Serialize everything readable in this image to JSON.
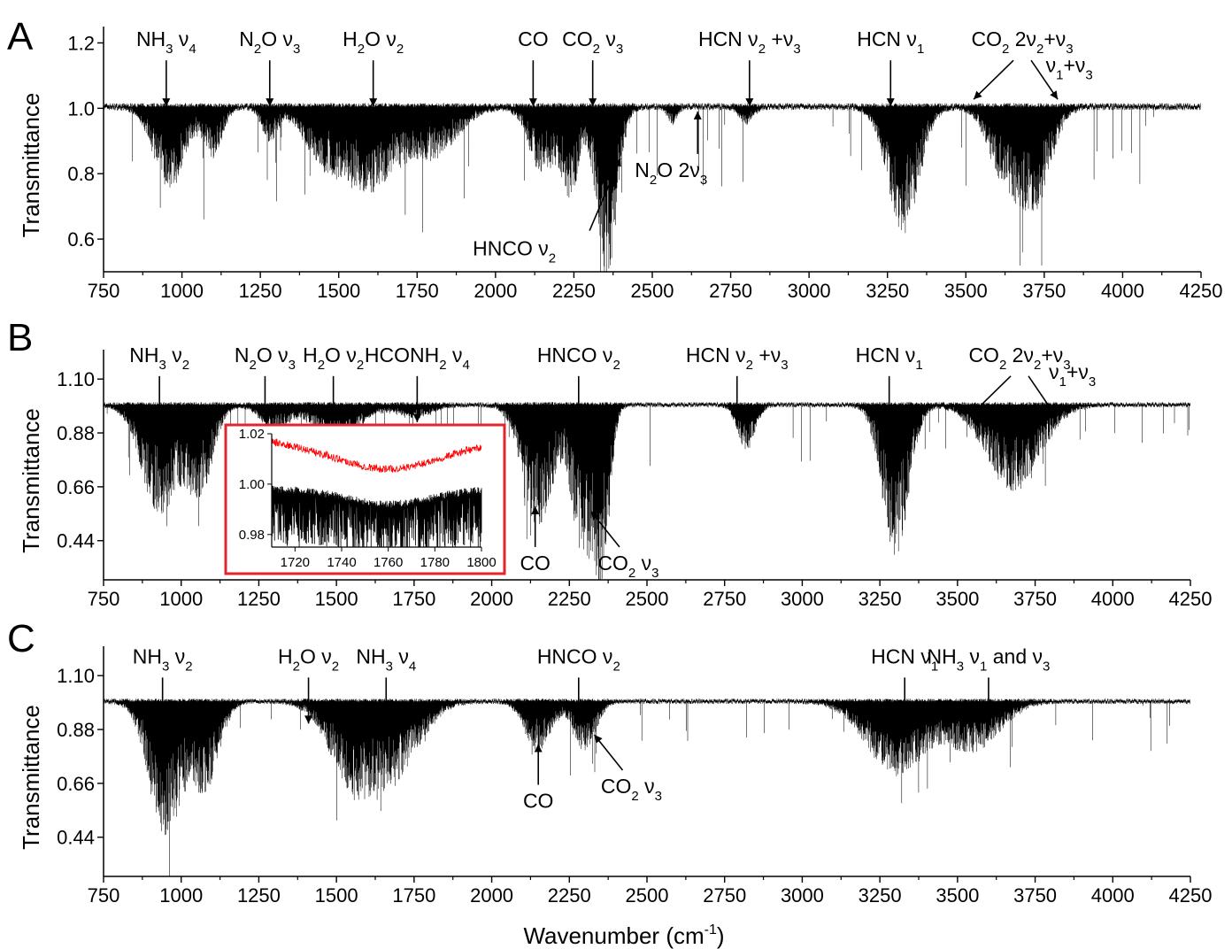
{
  "figure": {
    "xlabel": "Wavenumber (cm",
    "xlabel_sup": "-1",
    "xlabel_close": ")"
  },
  "chart_data": [
    {
      "type": "line",
      "panel": "A",
      "ylabel": "Transmittance",
      "xlim": [
        750,
        4250
      ],
      "ylim": [
        0.5,
        1.25
      ],
      "x_ticks": [
        750,
        1000,
        1250,
        1500,
        1750,
        2000,
        2250,
        2500,
        2750,
        3000,
        3250,
        3500,
        3750,
        4000,
        4250
      ],
      "x_tick_labels": [
        "750",
        "1000",
        "1250",
        "1500",
        "1750",
        "2000",
        "2250",
        "2500",
        "2750",
        "3000",
        "3250",
        "3500",
        "3750",
        "4000",
        "4250"
      ],
      "y_ticks": [
        0.6,
        0.8,
        1.0,
        1.2
      ],
      "y_tick_labels": [
        "0.6",
        "0.8",
        "1.0",
        "1.2"
      ],
      "baseline": 1.0,
      "bands": [
        {
          "center": 960,
          "width": 70,
          "depth": 0.25
        },
        {
          "center": 1100,
          "width": 40,
          "depth": 0.15
        },
        {
          "center": 1280,
          "width": 35,
          "depth": 0.1
        },
        {
          "center": 1450,
          "width": 90,
          "depth": 0.15
        },
        {
          "center": 1600,
          "width": 110,
          "depth": 0.25
        },
        {
          "center": 1800,
          "width": 110,
          "depth": 0.15
        },
        {
          "center": 2150,
          "width": 60,
          "depth": 0.2
        },
        {
          "center": 2240,
          "width": 40,
          "depth": 0.25
        },
        {
          "center": 2355,
          "width": 45,
          "depth": 0.55
        },
        {
          "center": 2565,
          "width": 20,
          "depth": 0.05
        },
        {
          "center": 2800,
          "width": 30,
          "depth": 0.05
        },
        {
          "center": 3300,
          "width": 70,
          "depth": 0.38
        },
        {
          "center": 3620,
          "width": 70,
          "depth": 0.2
        },
        {
          "center": 3720,
          "width": 70,
          "depth": 0.3
        }
      ],
      "annotations": [
        {
          "text": "NH",
          "sub": "3",
          "rest": " ν",
          "sub2": "4",
          "x": 950,
          "y": 1.19
        },
        {
          "text": "N",
          "sub": "2",
          "rest": "O ν",
          "sub2": "3",
          "x": 1280,
          "y": 1.19
        },
        {
          "text": "H",
          "sub": "2",
          "rest": "O ν",
          "sub2": "2",
          "x": 1610,
          "y": 1.19
        },
        {
          "text": "CO",
          "sub": "",
          "rest": "",
          "sub2": "",
          "x": 2120,
          "y": 1.19
        },
        {
          "text": "CO",
          "sub": "2",
          "rest": " ν",
          "sub2": "3",
          "x": 2310,
          "y": 1.19
        },
        {
          "text": "HCN ν",
          "sub": "2",
          "rest": " +ν",
          "sub2": "3",
          "x": 2810,
          "y": 1.19
        },
        {
          "text": "HCN ν",
          "sub": "1",
          "rest": "",
          "sub2": "",
          "x": 3260,
          "y": 1.19
        },
        {
          "text": "CO",
          "sub": "2",
          "rest": " 2ν",
          "sub2": "2",
          "rest2": "+ν",
          "sub3": "3",
          "x": 3680,
          "y": 1.19
        },
        {
          "text": "ν",
          "sub": "1",
          "rest": "+ν",
          "sub2": "3",
          "x": 3830,
          "y": 1.11
        },
        {
          "text": "N",
          "sub": "2",
          "rest": "O 2ν",
          "sub2": "3",
          "x": 2560,
          "y": 0.79
        },
        {
          "text": "HNCO ν",
          "sub": "2",
          "rest": "",
          "sub2": "",
          "x": 2060,
          "y": 0.55
        }
      ]
    },
    {
      "type": "line",
      "panel": "B",
      "ylabel": "Transmittance",
      "xlim": [
        750,
        4250
      ],
      "ylim": [
        0.28,
        1.22
      ],
      "x_ticks": [
        750,
        1000,
        1250,
        1500,
        1750,
        2000,
        2250,
        2500,
        2750,
        3000,
        3250,
        3500,
        3750,
        4000,
        4250
      ],
      "x_tick_labels": [
        "750",
        "1000",
        "1250",
        "1500",
        "1750",
        "2000",
        "2250",
        "2500",
        "2750",
        "3000",
        "3250",
        "3500",
        "3750",
        "4000",
        "4250"
      ],
      "y_ticks": [
        0.44,
        0.66,
        0.88,
        1.1
      ],
      "y_tick_labels": [
        "0.44",
        "0.66",
        "0.88",
        "1.10"
      ],
      "baseline": 0.99,
      "bands": [
        {
          "center": 930,
          "width": 80,
          "depth": 0.45
        },
        {
          "center": 1060,
          "width": 60,
          "depth": 0.35
        },
        {
          "center": 1300,
          "width": 60,
          "depth": 0.1
        },
        {
          "center": 1500,
          "width": 100,
          "depth": 0.15
        },
        {
          "center": 1750,
          "width": 80,
          "depth": 0.05
        },
        {
          "center": 2150,
          "width": 70,
          "depth": 0.5
        },
        {
          "center": 2290,
          "width": 45,
          "depth": 0.6
        },
        {
          "center": 2355,
          "width": 35,
          "depth": 0.7
        },
        {
          "center": 2820,
          "width": 40,
          "depth": 0.18
        },
        {
          "center": 3300,
          "width": 60,
          "depth": 0.62
        },
        {
          "center": 3680,
          "width": 120,
          "depth": 0.35
        }
      ],
      "annotations": [
        {
          "text": "NH",
          "sub": "3",
          "rest": " ν",
          "sub2": "2",
          "x": 930,
          "y": 1.17
        },
        {
          "text": "N",
          "sub": "2",
          "rest": "O ν",
          "sub2": "3",
          "x": 1270,
          "y": 1.17
        },
        {
          "text": "H",
          "sub": "2",
          "rest": "O ν",
          "sub2": "2",
          "x": 1490,
          "y": 1.17
        },
        {
          "text": "HCONH",
          "sub": "2",
          "rest": " ν",
          "sub2": "4",
          "x": 1760,
          "y": 1.17
        },
        {
          "text": "HNCO ν",
          "sub": "2",
          "rest": "",
          "sub2": "",
          "x": 2280,
          "y": 1.17
        },
        {
          "text": "HCN ν",
          "sub": "2",
          "rest": " +ν",
          "sub2": "3",
          "x": 2790,
          "y": 1.17
        },
        {
          "text": "HCN ν",
          "sub": "1",
          "rest": "",
          "sub2": "",
          "x": 3280,
          "y": 1.17
        },
        {
          "text": "CO",
          "sub": "2",
          "rest": " 2ν",
          "sub2": "2",
          "rest2": "+ν",
          "sub3": "3",
          "x": 3700,
          "y": 1.17
        },
        {
          "text": "ν",
          "sub": "1",
          "rest": "+ν",
          "sub2": "3",
          "x": 3870,
          "y": 1.1
        },
        {
          "text": "CO",
          "sub": "",
          "rest": "",
          "sub2": "",
          "x": 2140,
          "y": 0.32
        },
        {
          "text": "CO",
          "sub": "2",
          "rest": " ν",
          "sub2": "3",
          "x": 2440,
          "y": 0.32
        }
      ],
      "inset": {
        "xlim": [
          1710,
          1800
        ],
        "ylim": [
          0.975,
          1.02
        ],
        "x_ticks": [
          1720,
          1740,
          1760,
          1780,
          1800
        ],
        "x_tick_labels": [
          "1720",
          "1740",
          "1760",
          "1780",
          "1800"
        ],
        "y_ticks": [
          0.98,
          1.0,
          1.02
        ],
        "y_tick_labels": [
          "0.98",
          "1.00",
          "1.02"
        ],
        "series": [
          {
            "color": "#ff0000",
            "baseline": 1.012
          },
          {
            "color": "#000000",
            "baseline": 0.998
          }
        ],
        "frame_color": "#e0262b"
      }
    },
    {
      "type": "line",
      "panel": "C",
      "ylabel": "Transmittance",
      "xlim": [
        750,
        4250
      ],
      "ylim": [
        0.28,
        1.22
      ],
      "x_ticks": [
        750,
        1000,
        1250,
        1500,
        1750,
        2000,
        2250,
        2500,
        2750,
        3000,
        3250,
        3500,
        3750,
        4000,
        4250
      ],
      "x_tick_labels": [
        "750",
        "1000",
        "1250",
        "1500",
        "1750",
        "2000",
        "2250",
        "2500",
        "2750",
        "3000",
        "3250",
        "3500",
        "3750",
        "4000",
        "4250"
      ],
      "y_ticks": [
        0.44,
        0.66,
        0.88,
        1.1
      ],
      "y_tick_labels": [
        "0.44",
        "0.66",
        "0.88",
        "1.10"
      ],
      "baseline": 0.99,
      "bands": [
        {
          "center": 950,
          "width": 75,
          "depth": 0.55
        },
        {
          "center": 1080,
          "width": 60,
          "depth": 0.35
        },
        {
          "center": 1560,
          "width": 110,
          "depth": 0.35
        },
        {
          "center": 1700,
          "width": 110,
          "depth": 0.25
        },
        {
          "center": 2150,
          "width": 60,
          "depth": 0.2
        },
        {
          "center": 2300,
          "width": 50,
          "depth": 0.2
        },
        {
          "center": 3300,
          "width": 130,
          "depth": 0.3
        },
        {
          "center": 3550,
          "width": 120,
          "depth": 0.2
        }
      ],
      "annotations": [
        {
          "text": "NH",
          "sub": "3",
          "rest": " ν",
          "sub2": "2",
          "x": 940,
          "y": 1.15
        },
        {
          "text": "H",
          "sub": "2",
          "rest": "O ν",
          "sub2": "2",
          "x": 1410,
          "y": 1.15
        },
        {
          "text": "NH",
          "sub": "3",
          "rest": " ν",
          "sub2": "4",
          "x": 1660,
          "y": 1.15
        },
        {
          "text": "HNCO ν",
          "sub": "2",
          "rest": "",
          "sub2": "",
          "x": 2280,
          "y": 1.15
        },
        {
          "text": "HCN ν",
          "sub": "1",
          "rest": "",
          "sub2": "",
          "x": 3330,
          "y": 1.15
        },
        {
          "text": "NH",
          "sub": "3",
          "rest": " ν",
          "sub2": "1",
          "rest2": " and ν",
          "sub3": "3",
          "x": 3600,
          "y": 1.15
        },
        {
          "text": "CO",
          "sub": "",
          "rest": "",
          "sub2": "",
          "x": 2150,
          "y": 0.56
        },
        {
          "text": "CO",
          "sub": "2",
          "rest": " ν",
          "sub2": "3",
          "x": 2450,
          "y": 0.62
        }
      ]
    }
  ]
}
